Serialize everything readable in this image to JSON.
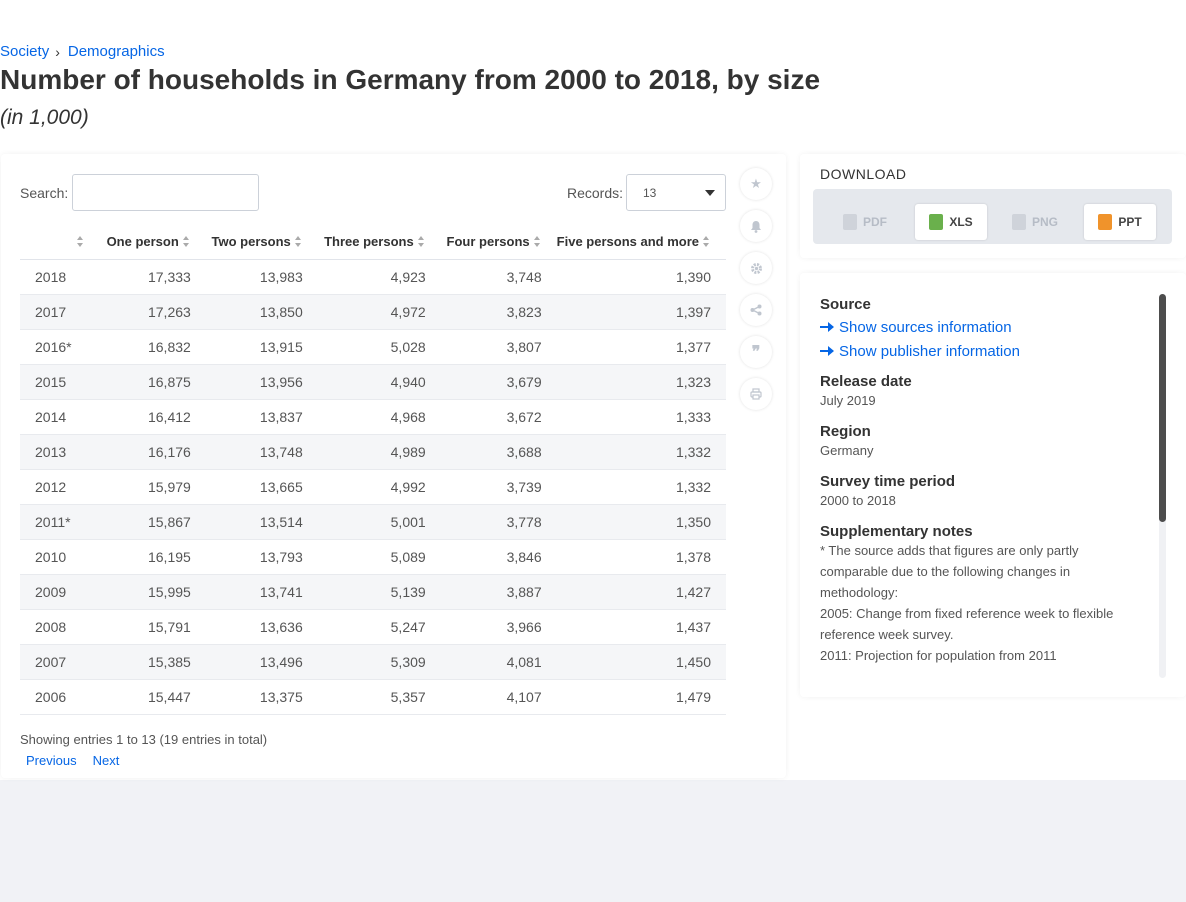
{
  "breadcrumb": {
    "item1": "Society",
    "item2": "Demographics"
  },
  "title": "Number of households in Germany from 2000 to 2018, by size",
  "subtitle": "(in 1,000)",
  "controls": {
    "search_label": "Search:",
    "search_value": "",
    "records_label": "Records:",
    "records_value": "13"
  },
  "table": {
    "headers": [
      "",
      "One person",
      "Two persons",
      "Three persons",
      "Four persons",
      "Five persons and more"
    ],
    "rows": [
      [
        "2018",
        "17,333",
        "13,983",
        "4,923",
        "3,748",
        "1,390"
      ],
      [
        "2017",
        "17,263",
        "13,850",
        "4,972",
        "3,823",
        "1,397"
      ],
      [
        "2016*",
        "16,832",
        "13,915",
        "5,028",
        "3,807",
        "1,377"
      ],
      [
        "2015",
        "16,875",
        "13,956",
        "4,940",
        "3,679",
        "1,323"
      ],
      [
        "2014",
        "16,412",
        "13,837",
        "4,968",
        "3,672",
        "1,333"
      ],
      [
        "2013",
        "16,176",
        "13,748",
        "4,989",
        "3,688",
        "1,332"
      ],
      [
        "2012",
        "15,979",
        "13,665",
        "4,992",
        "3,739",
        "1,332"
      ],
      [
        "2011*",
        "15,867",
        "13,514",
        "5,001",
        "3,778",
        "1,350"
      ],
      [
        "2010",
        "16,195",
        "13,793",
        "5,089",
        "3,846",
        "1,378"
      ],
      [
        "2009",
        "15,995",
        "13,741",
        "5,139",
        "3,887",
        "1,427"
      ],
      [
        "2008",
        "15,791",
        "13,636",
        "5,247",
        "3,966",
        "1,437"
      ],
      [
        "2007",
        "15,385",
        "13,496",
        "5,309",
        "4,081",
        "1,450"
      ],
      [
        "2006",
        "15,447",
        "13,375",
        "5,357",
        "4,107",
        "1,479"
      ]
    ]
  },
  "pagination": {
    "showing": "Showing entries 1 to 13 (19 entries in total)",
    "previous": "Previous",
    "next": "Next"
  },
  "tools": [
    "star-icon",
    "bell-icon",
    "gear-icon",
    "share-icon",
    "quote-icon",
    "print-icon"
  ],
  "download": {
    "title": "DOWNLOAD",
    "pdf": "PDF",
    "xls": "XLS",
    "png": "PNG",
    "ppt": "PPT"
  },
  "info": {
    "source_h": "Source",
    "show_sources": "Show sources information",
    "show_publisher": "Show publisher information",
    "release_h": "Release date",
    "release_v": "July 2019",
    "region_h": "Region",
    "region_v": "Germany",
    "period_h": "Survey time period",
    "period_v": "2000 to 2018",
    "notes_h": "Supplementary notes",
    "notes_1": "* The source adds that figures are only partly comparable due to the following changes in methodology:",
    "notes_2": "2005: Change from fixed reference week to flexible reference week survey.",
    "notes_3": "2011: Projection for population from 2011"
  },
  "colors": {
    "link": "#0666e5",
    "title": "#333333",
    "page_bg": "#f1f2f6"
  }
}
